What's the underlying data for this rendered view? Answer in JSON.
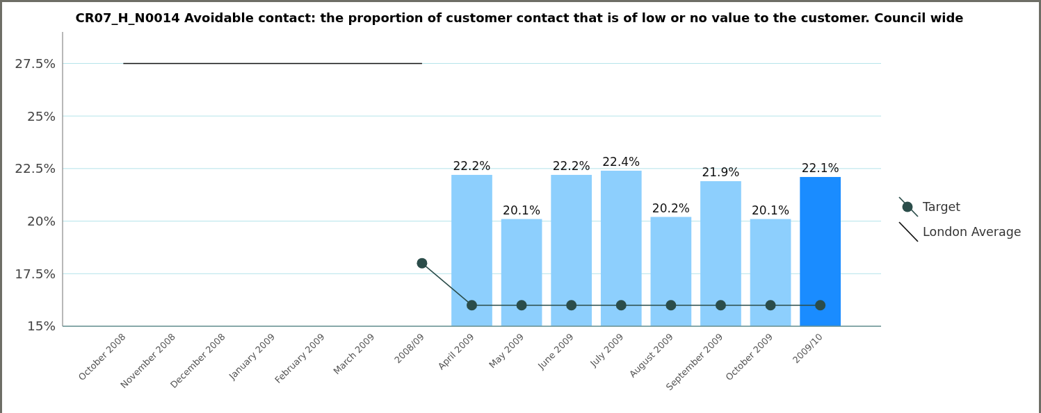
{
  "chart_data": {
    "type": "bar",
    "title": "CR07_H_N0014 Avoidable contact: the proportion of customer contact that is of low or no value to the customer. Council wide",
    "categories": [
      "October 2008",
      "November 2008",
      "December 2008",
      "January 2009",
      "February 2009",
      "March 2009",
      "2008/09",
      "April 2009",
      "May 2009",
      "June 2009",
      "July 2009",
      "August 2009",
      "September 2009",
      "October 2009",
      "2009/10"
    ],
    "series": [
      {
        "colors": [
          null,
          null,
          null,
          null,
          null,
          null,
          null,
          "#8dcffd",
          "#8dcffd",
          "#8dcffd",
          "#8dcffd",
          "#8dcffd",
          "#8dcffd",
          "#8dcffd",
          "#1a8cff"
        ],
        "values": [
          null,
          null,
          null,
          null,
          null,
          null,
          null,
          22.2,
          20.1,
          22.2,
          22.4,
          20.2,
          21.9,
          20.1,
          22.1
        ],
        "value_labels": [
          null,
          null,
          null,
          null,
          null,
          null,
          null,
          "22.2%",
          "20.1%",
          "22.2%",
          "22.4%",
          "20.2%",
          "21.9%",
          "20.1%",
          "22.1%"
        ]
      },
      {
        "type": "line",
        "name": "Target",
        "color": "#2b4d4a",
        "marker": "circle",
        "values": [
          null,
          null,
          null,
          null,
          null,
          null,
          18,
          16,
          16,
          16,
          16,
          16,
          16,
          16,
          16
        ]
      },
      {
        "type": "line",
        "name": "London Average",
        "color": "#111111",
        "marker": "none",
        "values": [
          27.5,
          27.5,
          27.5,
          27.5,
          27.5,
          27.5,
          27.5,
          null,
          null,
          null,
          null,
          null,
          null,
          null,
          null
        ]
      }
    ],
    "ylim": [
      15,
      29
    ],
    "yticks": [
      {
        "value": 15,
        "label": "15%"
      },
      {
        "value": 17.5,
        "label": "17.5%"
      },
      {
        "value": 20,
        "label": "20%"
      },
      {
        "value": 22.5,
        "label": "22.5%"
      },
      {
        "value": 25,
        "label": "25%"
      },
      {
        "value": 27.5,
        "label": "27.5%"
      }
    ],
    "grid": "y",
    "legend": "right"
  }
}
